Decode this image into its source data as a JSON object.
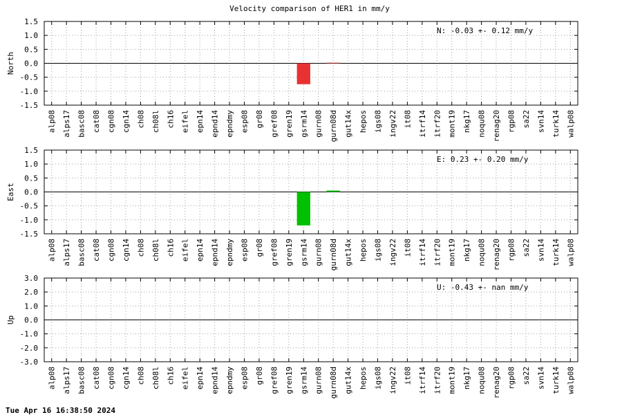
{
  "title": "Velocity comparison of HER1 in mm/y",
  "timestamp": "Tue Apr 16 16:38:50 2024",
  "chart_data": [
    {
      "type": "bar",
      "ylabel": "North",
      "annotation": "N:  -0.03 +-  0.12 mm/y",
      "color": "#e83232",
      "grid": true,
      "categories": [
        "alp08",
        "alps17",
        "basc08",
        "cat08",
        "cgn08",
        "cgn14",
        "ch08",
        "ch08l",
        "ch16",
        "eifel",
        "epn14",
        "epnd14",
        "epndmy",
        "esp08",
        "gr08",
        "gref08",
        "gren19",
        "gsrm14",
        "gurn08",
        "gurn08d",
        "gut14x",
        "hepos",
        "igs08",
        "ingv22",
        "it08",
        "itrf14",
        "itrf20",
        "mont19",
        "nkg17",
        "noqu08",
        "renag20",
        "rgp08",
        "sa22",
        "svn14",
        "turk14",
        "walp08"
      ],
      "values": [
        null,
        null,
        null,
        null,
        null,
        null,
        null,
        null,
        null,
        null,
        null,
        null,
        null,
        null,
        null,
        null,
        null,
        -0.75,
        null,
        0.02,
        null,
        null,
        null,
        null,
        null,
        null,
        null,
        null,
        null,
        null,
        null,
        null,
        null,
        null,
        null,
        null
      ],
      "ylim": [
        -1.5,
        1.5
      ],
      "yticks": [
        1.5,
        {
          "value": 1,
          "label": "1.0"
        },
        0.5,
        {
          "value": 0,
          "label": "0.0"
        },
        -0.5,
        {
          "value": -1,
          "label": "-1.0"
        },
        -1.5
      ]
    },
    {
      "type": "bar",
      "ylabel": "East",
      "annotation": "E:   0.23 +-  0.20 mm/y",
      "color": "#00c000",
      "grid": true,
      "categories": [
        "alp08",
        "alps17",
        "basc08",
        "cat08",
        "cgn08",
        "cgn14",
        "ch08",
        "ch08l",
        "ch16",
        "eifel",
        "epn14",
        "epnd14",
        "epndmy",
        "esp08",
        "gr08",
        "gref08",
        "gren19",
        "gsrm14",
        "gurn08",
        "gurn08d",
        "gut14x",
        "hepos",
        "igs08",
        "ingv22",
        "it08",
        "itrf14",
        "itrf20",
        "mont19",
        "nkg17",
        "noqu08",
        "renag20",
        "rgp08",
        "sa22",
        "svn14",
        "turk14",
        "walp08"
      ],
      "values": [
        null,
        null,
        null,
        null,
        null,
        null,
        null,
        null,
        null,
        null,
        null,
        null,
        null,
        null,
        null,
        null,
        null,
        -1.2,
        null,
        0.05,
        null,
        null,
        null,
        null,
        null,
        null,
        null,
        null,
        null,
        null,
        null,
        null,
        null,
        null,
        null,
        null
      ],
      "ylim": [
        -1.5,
        1.5
      ],
      "yticks": [
        1.5,
        {
          "value": 1,
          "label": "1.0"
        },
        0.5,
        {
          "value": 0,
          "label": "0.0"
        },
        -0.5,
        {
          "value": -1,
          "label": "-1.0"
        },
        -1.5
      ]
    },
    {
      "type": "bar",
      "ylabel": "Up",
      "annotation": "U:  -0.43 +-   nan mm/y",
      "grid": true,
      "categories": [
        "alp08",
        "alps17",
        "basc08",
        "cat08",
        "cgn08",
        "cgn14",
        "ch08",
        "ch08l",
        "ch16",
        "eifel",
        "epn14",
        "epnd14",
        "epndmy",
        "esp08",
        "gr08",
        "gref08",
        "gren19",
        "gsrm14",
        "gurn08",
        "gurn08d",
        "gut14x",
        "hepos",
        "igs08",
        "ingv22",
        "it08",
        "itrf14",
        "itrf20",
        "mont19",
        "nkg17",
        "noqu08",
        "renag20",
        "rgp08",
        "sa22",
        "svn14",
        "turk14",
        "walp08"
      ],
      "values": [
        null,
        null,
        null,
        null,
        null,
        null,
        null,
        null,
        null,
        null,
        null,
        null,
        null,
        null,
        null,
        null,
        null,
        null,
        null,
        null,
        null,
        null,
        null,
        null,
        null,
        null,
        null,
        null,
        null,
        null,
        null,
        null,
        null,
        null,
        null,
        null
      ],
      "ylim": [
        -3,
        3
      ],
      "yticks": [
        {
          "value": 3,
          "label": "3.0"
        },
        {
          "value": 2,
          "label": "2.0"
        },
        {
          "value": 1,
          "label": "1.0"
        },
        {
          "value": 0,
          "label": "0.0"
        },
        {
          "value": -1,
          "label": "-1.0"
        },
        {
          "value": -2,
          "label": "-2.0"
        },
        {
          "value": -3,
          "label": "-3.0"
        }
      ]
    }
  ]
}
